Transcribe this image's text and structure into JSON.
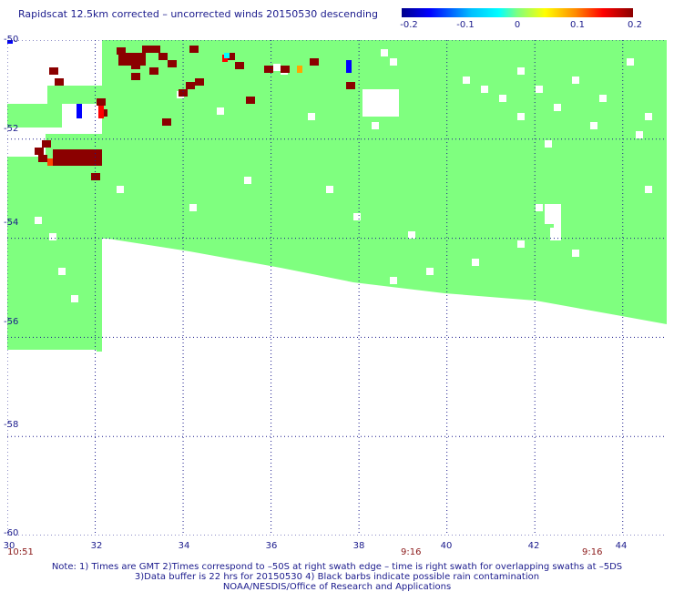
{
  "title": "Rapidscat 12.5km corrected – uncorrected winds 20150530 descending",
  "colorbar": {
    "ticks": [
      "-0.2",
      "-0.1",
      "0",
      "0.1",
      "0.2"
    ],
    "range": [
      -0.2,
      0.2
    ],
    "colors": [
      "#00008b",
      "#0000ff",
      "#00ffff",
      "#7fff7f",
      "#ffff00",
      "#ff8c00",
      "#ff0000",
      "#8b0000"
    ]
  },
  "map": {
    "lat_ticks": [
      "-50",
      "-52",
      "-54",
      "-56",
      "-58",
      "-60"
    ],
    "lon_ticks": [
      "30",
      "32",
      "34",
      "36",
      "38",
      "40",
      "42",
      "44"
    ],
    "lon_range": [
      30,
      45
    ],
    "lat_range": [
      -60,
      -50
    ],
    "grid": "dotted",
    "colors": {
      "land_or_data": "#7fff7f",
      "high": "#8b0000",
      "low": "#0000ff",
      "axis": "#1a1a8c"
    }
  },
  "times": [
    {
      "label": "10:51",
      "lon": 30
    },
    {
      "label": "9:16",
      "lon": 39.3
    },
    {
      "label": "9:16",
      "lon": 43.3
    }
  ],
  "notes": [
    "Note: 1) Times are GMT 2)Times correspond to –50S at right swath edge – time is right swath for overlapping swaths at –5DS",
    "3)Data buffer is 22 hrs for 20150530 4) Black barbs indicate possible rain contamination",
    "NOAA/NESDIS/Office of Research and Applications"
  ]
}
